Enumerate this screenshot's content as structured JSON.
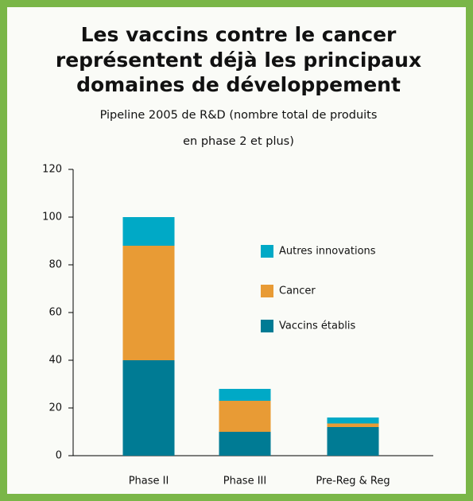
{
  "chart_data": {
    "type": "stacked_bar",
    "title": [
      "Les vaccins contre le cancer",
      "représentent déjà les principaux",
      "domaines de développement"
    ],
    "subtitle": [
      "Pipeline 2005 de R&D (nombre total de produits",
      "en phase 2 et plus)"
    ],
    "categories": [
      "Phase II",
      "Phase III",
      "Pre-Reg & Reg"
    ],
    "series": [
      {
        "name": "Vaccins établis",
        "color": "#007b94",
        "values": [
          40,
          10,
          12
        ]
      },
      {
        "name": "Cancer",
        "color": "#e89b35",
        "values": [
          48,
          13,
          1.5
        ]
      },
      {
        "name": "Autres innovations",
        "color": "#00a9c6",
        "values": [
          12,
          5,
          2.5
        ]
      }
    ],
    "ylim": [
      0,
      120
    ],
    "yticks": [
      0,
      20,
      40,
      60,
      80,
      100,
      120
    ]
  }
}
